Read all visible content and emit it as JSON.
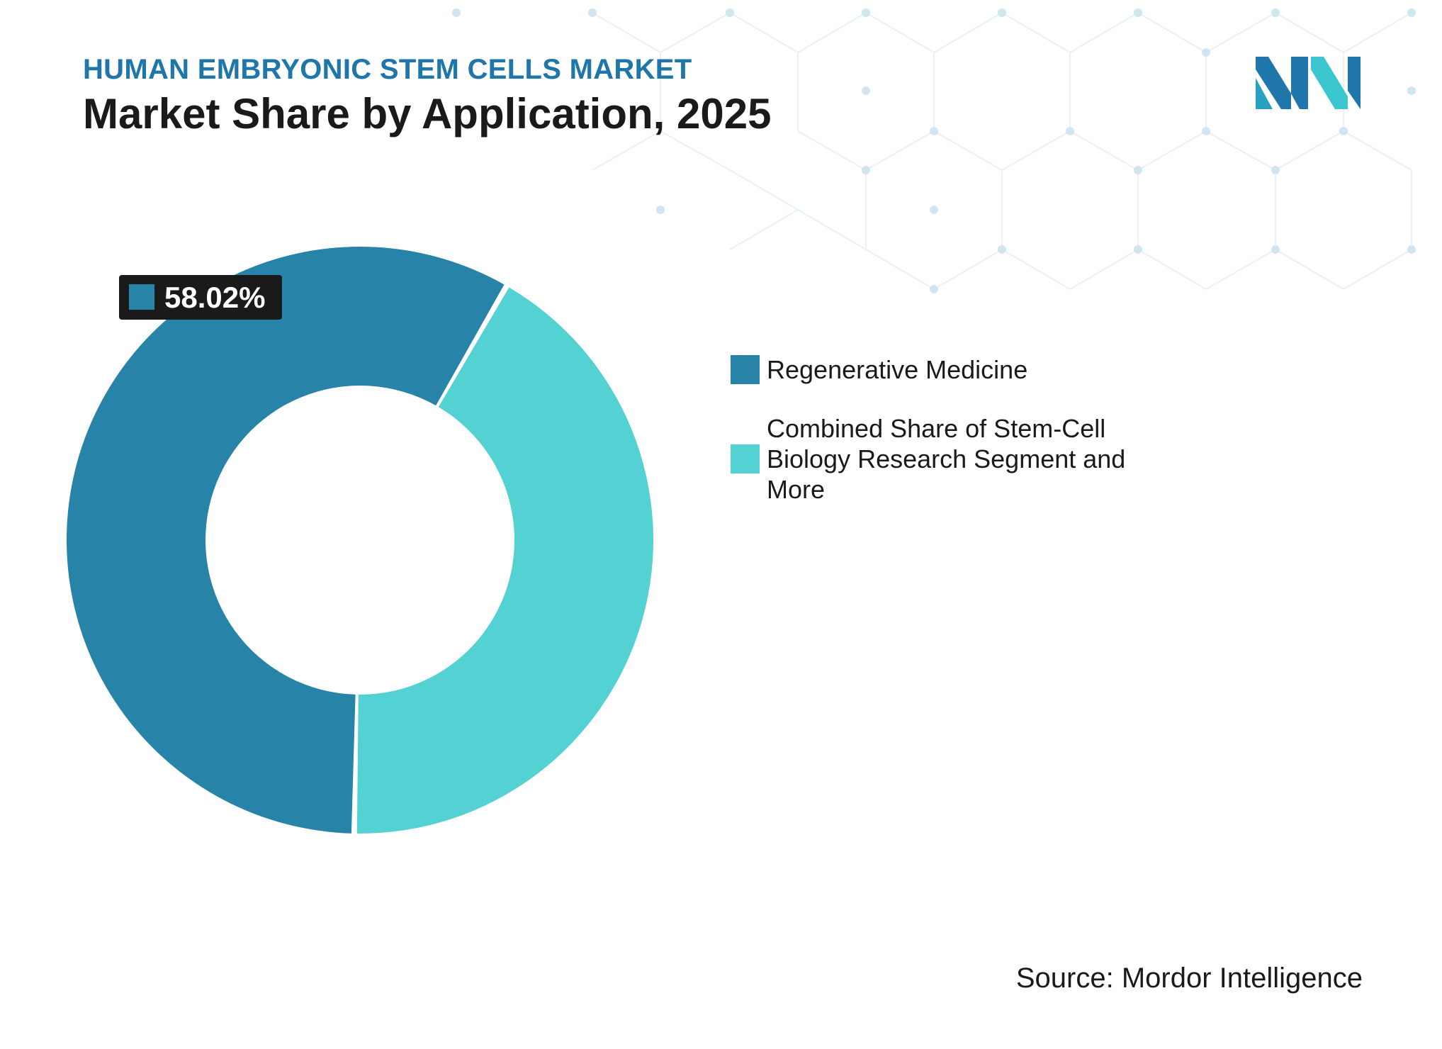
{
  "header": {
    "subtitle": "HUMAN EMBRYONIC STEM CELLS MARKET",
    "title": "Market Share by Application, 2025"
  },
  "footer": {
    "source": "Source: Mordor Intelligence"
  },
  "colors": {
    "accent": "#1e76ab",
    "series_primary": "#2783a8",
    "series_secondary": "#53d1d3",
    "label_bg": "#1a1a1a",
    "pattern": "#cfe6f1"
  },
  "icons": {
    "logo": "mordor-intelligence-logo"
  },
  "chart_data": {
    "type": "pie",
    "style": "donut",
    "title": "Market Share by Application, 2025",
    "categories": [
      "Regenerative Medicine",
      "Combined Share of Stem-Cell Biology Research Segment and More"
    ],
    "values": [
      58.02,
      41.98
    ],
    "data_labels": [
      "58.02%"
    ],
    "legend_position": "right",
    "grid": false
  }
}
